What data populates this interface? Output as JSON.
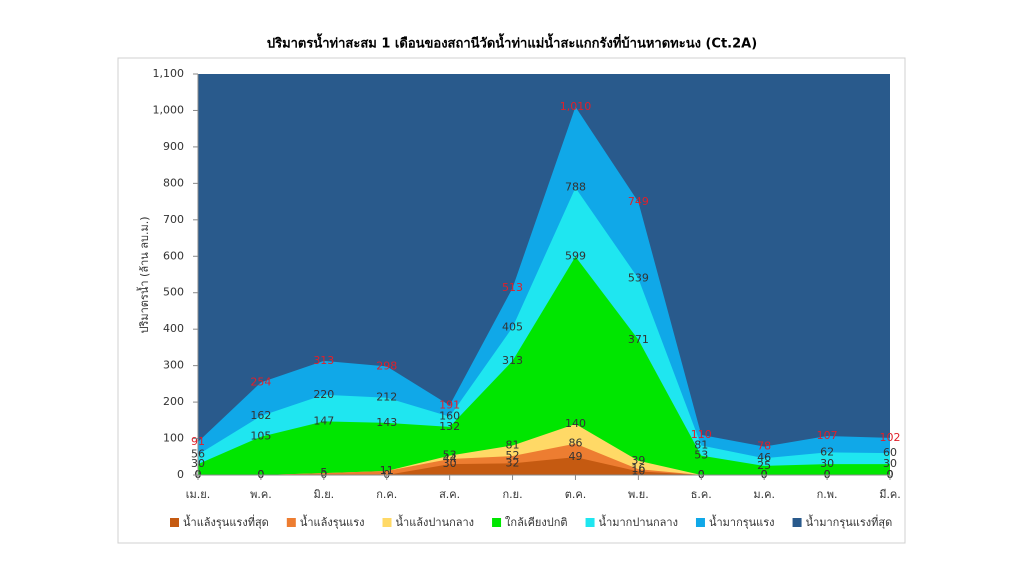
{
  "chart_data": {
    "type": "area",
    "title": "ปริมาตรน้ำท่าสะสม 1 เดือนของสถานีวัดน้ำท่าแม่น้ำสะแกกรังที่บ้านหาดทะนง (Ct.2A)",
    "y_label": "ปริมาตรน้ำ (ล้าน ลบ.ม.)",
    "categories": [
      "เม.ย.",
      "พ.ค.",
      "มิ.ย.",
      "ก.ค.",
      "ส.ค.",
      "ก.ย.",
      "ต.ค.",
      "พ.ย.",
      "ธ.ค.",
      "ม.ค.",
      "ก.พ.",
      "มี.ค."
    ],
    "ylim": [
      0,
      1100
    ],
    "yticks": [
      0,
      100,
      200,
      300,
      400,
      500,
      600,
      700,
      800,
      900,
      {
        "value": 1000,
        "label": "1,000"
      },
      {
        "value": 1100,
        "label": "1,100"
      }
    ],
    "legend": "bottom",
    "series": [
      {
        "name": "น้ำแล้งรุนแรงที่สุด",
        "color": "#c55a11",
        "label_color": "#333333",
        "values": [
          0,
          0,
          0,
          0,
          30,
          32,
          49,
          10,
          0,
          0,
          0,
          0
        ]
      },
      {
        "name": "น้ำแล้งรุนแรง",
        "color": "#ed7d31",
        "label_color": "#333333",
        "values": [
          0,
          0,
          5,
          11,
          44,
          52,
          86,
          16,
          0,
          0,
          0,
          0
        ]
      },
      {
        "name": "น้ำแล้งปานกลาง",
        "color": "#ffd966",
        "label_color": "#333333",
        "values": [
          0,
          0,
          5,
          11,
          53,
          81,
          140,
          39,
          0,
          0,
          0,
          0
        ]
      },
      {
        "name": "ใกล้เคียงปกติ",
        "color": "#00e600",
        "label_color": "#333333",
        "values": [
          30,
          105,
          147,
          143,
          132,
          313,
          599,
          371,
          53,
          25,
          30,
          30
        ]
      },
      {
        "name": "น้ำมากปานกลาง",
        "color": "#1fe6f0",
        "label_color": "#333333",
        "values": [
          56,
          162,
          220,
          212,
          160,
          405,
          788,
          539,
          81,
          46,
          62,
          60
        ]
      },
      {
        "name": "น้ำมากรุนแรง",
        "color": "#10a8e8",
        "label_color": "#e0202a",
        "values": [
          91,
          254,
          313,
          298,
          191,
          513,
          1010,
          749,
          110,
          78,
          107,
          102
        ],
        "value_labels": [
          "91",
          "254",
          "313",
          "298",
          "191",
          "513",
          "1,010",
          "749",
          "110",
          "78",
          "107",
          "102"
        ]
      },
      {
        "name": "น้ำมากรุนแรงที่สุด",
        "color": "#295a8c",
        "values": [
          1100,
          1100,
          1100,
          1100,
          1100,
          1100,
          1100,
          1100,
          1100,
          1100,
          1100,
          1100
        ]
      }
    ]
  }
}
